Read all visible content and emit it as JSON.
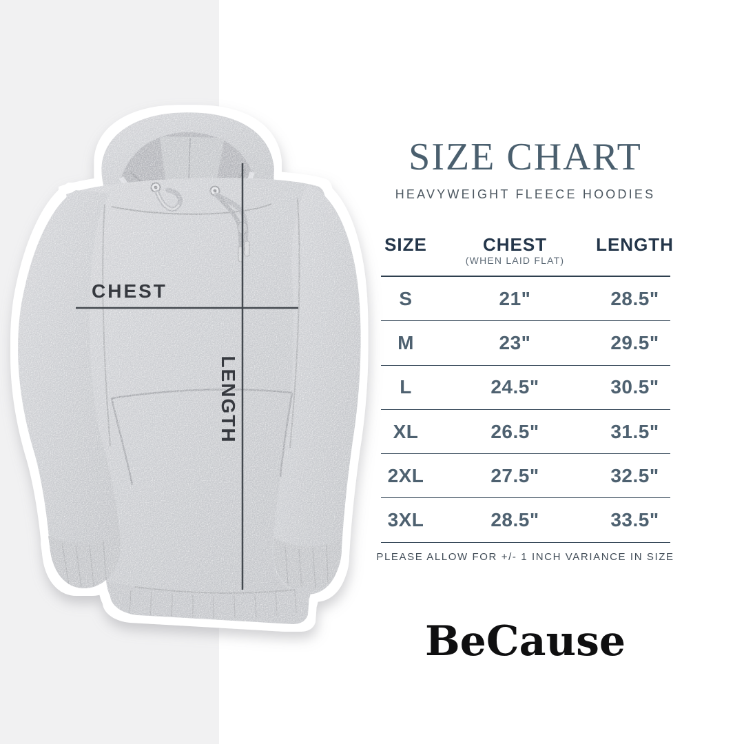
{
  "left_panel": {
    "measurements": {
      "chest_label": "CHEST",
      "length_label": "LENGTH"
    }
  },
  "size_chart": {
    "title": "SIZE CHART",
    "subtitle": "HEAVYWEIGHT FLEECE HOODIES",
    "table": {
      "columns": [
        {
          "label": "SIZE",
          "sublabel": ""
        },
        {
          "label": "CHEST",
          "sublabel": "(WHEN LAID FLAT)"
        },
        {
          "label": "LENGTH",
          "sublabel": ""
        }
      ],
      "rows": [
        {
          "size": "S",
          "chest": "21\"",
          "length": "28.5\""
        },
        {
          "size": "M",
          "chest": "23\"",
          "length": "29.5\""
        },
        {
          "size": "L",
          "chest": "24.5\"",
          "length": "30.5\""
        },
        {
          "size": "XL",
          "chest": "26.5\"",
          "length": "31.5\""
        },
        {
          "size": "2XL",
          "chest": "27.5\"",
          "length": "32.5\""
        },
        {
          "size": "3XL",
          "chest": "28.5\"",
          "length": "33.5\""
        }
      ]
    },
    "note": "PLEASE ALLOW FOR +/- 1 INCH VARIANCE IN SIZE",
    "brand": "BeCause"
  },
  "colors": {
    "left_band": "#f1f1f2",
    "background": "#ffffff",
    "title": "#4a5f6e",
    "subtitle": "#4b565f",
    "table_header": "#24364a",
    "table_text": "#4e6170",
    "rule": "#2e3f4e",
    "note": "#414c57",
    "brand": "#0f0f10",
    "measure_line": "#43484e",
    "fabric": "#cbcdd1",
    "sticker_outline": "#ffffff"
  }
}
